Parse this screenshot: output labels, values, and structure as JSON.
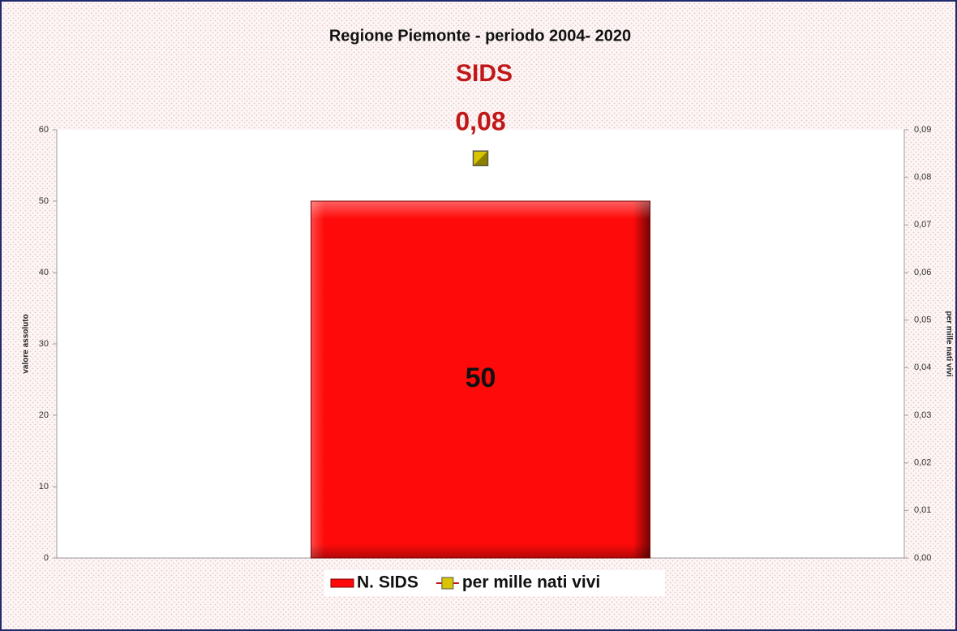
{
  "chart_data": {
    "type": "bar",
    "title": "Regione Piemonte  -  periodo 2004- 2020",
    "subtitle": "SIDS",
    "ylabel": "valore assoluto",
    "y2label": "per mille nati vivi",
    "categories": [
      null
    ],
    "series": [
      {
        "name": "N. SIDS",
        "color": "#ff0a0a",
        "values": [
          50
        ]
      },
      {
        "name": "per mille nati vivi",
        "color": "#d8c400",
        "values": [
          0.084
        ],
        "value_labels": [
          "0,08"
        ],
        "axis": "y2",
        "type": "marker"
      }
    ],
    "ylim": [
      0,
      60
    ],
    "yticks": [
      0,
      10,
      20,
      30,
      40,
      50,
      60
    ],
    "y2lim": [
      0,
      0.09
    ],
    "y2ticks": [
      {
        "value": 0,
        "label": "0,00"
      },
      {
        "value": 0.01,
        "label": "0,01"
      },
      {
        "value": 0.02,
        "label": "0,02"
      },
      {
        "value": 0.03,
        "label": "0,03"
      },
      {
        "value": 0.04,
        "label": "0,04"
      },
      {
        "value": 0.05,
        "label": "0,05"
      },
      {
        "value": 0.06,
        "label": "0,06"
      },
      {
        "value": 0.07,
        "label": "0,07"
      },
      {
        "value": 0.08,
        "label": "0,08"
      },
      {
        "value": 0.09,
        "label": "0,09"
      }
    ],
    "legend": "bottom"
  }
}
